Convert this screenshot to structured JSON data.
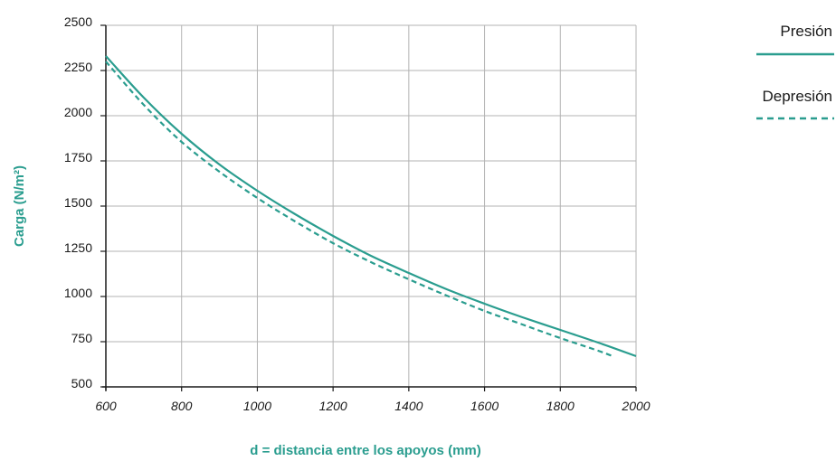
{
  "chart_data": {
    "type": "line",
    "xlabel": "d = distancia entre los apoyos (mm)",
    "ylabel": "Carga (N/m²)",
    "xlim": [
      600,
      2000
    ],
    "ylim": [
      500,
      2500
    ],
    "x_ticks": [
      600,
      800,
      1000,
      1200,
      1400,
      1600,
      1800,
      2000
    ],
    "y_ticks": [
      500,
      750,
      1000,
      1250,
      1500,
      1750,
      2000,
      2250,
      2500
    ],
    "grid": true,
    "legend_position": "top-right",
    "series": [
      {
        "name": "Presión",
        "style": "solid",
        "x": [
          600,
          700,
          800,
          900,
          1000,
          1100,
          1200,
          1300,
          1400,
          1500,
          1600,
          1700,
          1800,
          1900,
          2000
        ],
        "y": [
          2330,
          2100,
          1900,
          1730,
          1585,
          1455,
          1335,
          1225,
          1130,
          1040,
          960,
          885,
          815,
          745,
          670
        ]
      },
      {
        "name": "Depresión",
        "style": "dashed",
        "x": [
          600,
          700,
          800,
          900,
          1000,
          1100,
          1200,
          1300,
          1400,
          1500,
          1600,
          1700,
          1800,
          1900,
          1940
        ],
        "y": [
          2300,
          2060,
          1855,
          1690,
          1545,
          1415,
          1295,
          1190,
          1095,
          1005,
          920,
          845,
          770,
          700,
          668
        ]
      }
    ]
  },
  "colors": {
    "series": "#2a9d8f",
    "ylabel": "#2a9d8f",
    "xlabel": "#2a9d8f",
    "grid": "#b3b3b3",
    "axis": "#1a1a1a"
  }
}
